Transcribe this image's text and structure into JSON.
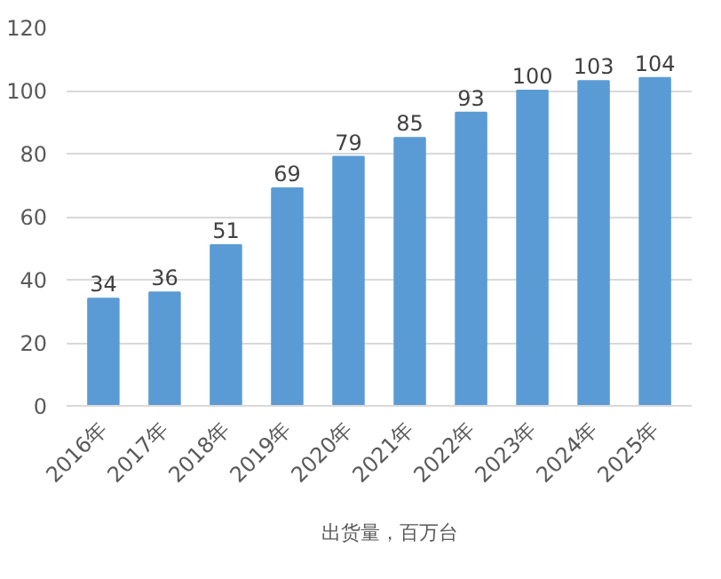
{
  "chart_data": {
    "type": "bar",
    "categories": [
      "2016年",
      "2017年",
      "2018年",
      "2019年",
      "2020年",
      "2021年",
      "2022年",
      "2023年",
      "2024年",
      "2025年"
    ],
    "series": [
      {
        "name": "出货量，百万台",
        "color": "#5b9bd5",
        "values": [
          34,
          36,
          51,
          69,
          79,
          85,
          93,
          100,
          103,
          104
        ]
      }
    ],
    "ylim": [
      0,
      120
    ],
    "yticks": [
      0,
      20,
      40,
      60,
      80,
      100,
      120
    ],
    "grid": "y",
    "legend": "bottom",
    "data_labels": true
  }
}
